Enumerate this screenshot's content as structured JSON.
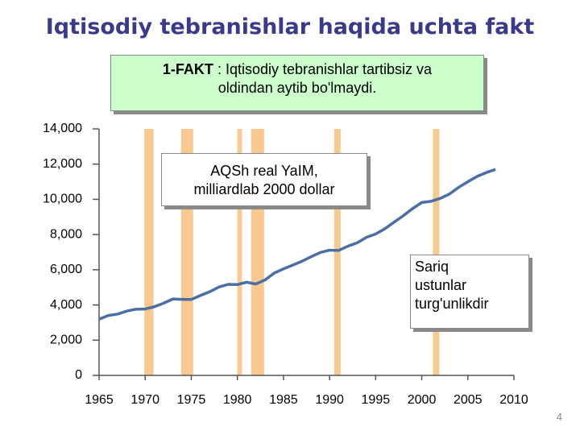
{
  "chart_data": {
    "type": "line",
    "title": "Iqtisodiy tebranishlar haqida uchta fakt",
    "fact": {
      "label": "1-FAKT",
      "lines": [
        ": Iqtisodiy tebranishlar tartibsiz va",
        "oldindan aytib bo'lmaydi."
      ]
    },
    "annotations": [
      [
        "AQSh real YaIM,",
        "milliardlab 2000 dollar"
      ],
      [
        "Sariq",
        "ustunlar",
        "turg'unlikdir"
      ]
    ],
    "page_number": "4",
    "x": [
      1965,
      1966,
      1967,
      1968,
      1969,
      1970,
      1971,
      1972,
      1973,
      1974,
      1975,
      1976,
      1977,
      1978,
      1979,
      1980,
      1981,
      1982,
      1983,
      1984,
      1985,
      1986,
      1987,
      1988,
      1989,
      1990,
      1991,
      1992,
      1993,
      1994,
      1995,
      1996,
      1997,
      1998,
      1999,
      2000,
      2001,
      2002,
      2003,
      2004,
      2005,
      2006,
      2007,
      2008
    ],
    "series": [
      {
        "color": "#4a6fa5",
        "values": [
          3190,
          3400,
          3480,
          3650,
          3760,
          3770,
          3900,
          4100,
          4340,
          4320,
          4310,
          4540,
          4750,
          5020,
          5170,
          5160,
          5290,
          5190,
          5420,
          5810,
          6050,
          6260,
          6480,
          6740,
          6980,
          7110,
          7100,
          7340,
          7530,
          7840,
          8030,
          8330,
          8700,
          9070,
          9470,
          9820,
          9890,
          10050,
          10300,
          10680,
          11000,
          11300,
          11520,
          11700
        ]
      }
    ],
    "recessions": [
      [
        1969.9,
        1970.9
      ],
      [
        1973.9,
        1975.2
      ],
      [
        1980.0,
        1980.5
      ],
      [
        1981.5,
        1982.9
      ],
      [
        1990.5,
        1991.2
      ],
      [
        2001.2,
        2001.9
      ]
    ],
    "recession_color": "#f9c98f",
    "xlim": [
      1965,
      2010
    ],
    "xticks": [
      1965,
      1970,
      1975,
      1980,
      1985,
      1990,
      1995,
      2000,
      2005,
      2010
    ],
    "ylim": [
      0,
      14000
    ],
    "yticks": [
      0,
      {
        "value": 2000,
        "label": "2,000"
      },
      {
        "value": 4000,
        "label": "4,000"
      },
      {
        "value": 6000,
        "label": "6,000"
      },
      {
        "value": 8000,
        "label": "8,000"
      },
      {
        "value": 10000,
        "label": "10,000"
      },
      {
        "value": 12000,
        "label": "12,000"
      },
      {
        "value": 14000,
        "label": "14,000"
      }
    ]
  }
}
